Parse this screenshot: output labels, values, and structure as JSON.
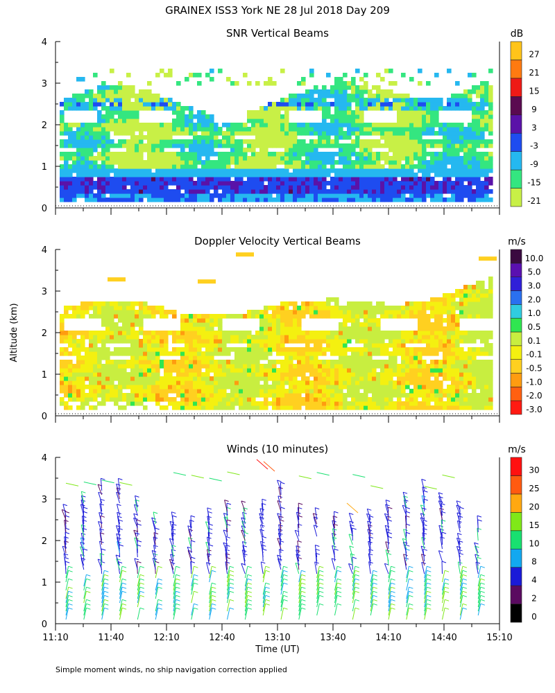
{
  "figure": {
    "title": "GRAINEX ISS3 York NE  28 Jul 2018 Day 209",
    "y_axis_label": "Altitude (km)",
    "x_axis_label": "Time (UT)",
    "footnote": "Simple moment winds, no ship navigation correction applied"
  },
  "chart_data": [
    {
      "type": "heatmap",
      "title": "SNR Vertical Beams",
      "colorbar": {
        "unit": "dB",
        "labels": [
          "-21",
          "-15",
          "-9",
          "-3",
          "3",
          "9",
          "15",
          "21",
          "27"
        ],
        "colors": [
          "#c8f046",
          "#34e680",
          "#25b8f0",
          "#1e4cf0",
          "#5a12a8",
          "#5a0a50",
          "#ee1a16",
          "#ff7a10",
          "#ffc41a"
        ]
      },
      "y_ticks": [
        "0",
        "1",
        "2",
        "3",
        "4"
      ],
      "ylim": [
        0,
        4
      ],
      "xlim": [
        "11:10",
        "15:10"
      ]
    },
    {
      "type": "heatmap",
      "title": "Doppler Velocity Vertical Beams",
      "colorbar": {
        "unit": "m/s",
        "labels": [
          "-3.0",
          "-2.0",
          "-1.0",
          "-0.5",
          "-0.1",
          "0.1",
          "0.5",
          "1.0",
          "2.0",
          "3.0",
          "5.0",
          "10.0"
        ],
        "colors": [
          "#ff1a12",
          "#ff6010",
          "#ff9c10",
          "#ffd020",
          "#f4f010",
          "#c8ee40",
          "#30e650",
          "#30cce0",
          "#2a70f0",
          "#3020d8",
          "#5a10b0",
          "#3a0a40"
        ]
      },
      "y_ticks": [
        "0",
        "1",
        "2",
        "3",
        "4"
      ],
      "ylim": [
        0,
        4
      ],
      "xlim": [
        "11:10",
        "15:10"
      ]
    },
    {
      "type": "scatter",
      "title": "Winds (10 minutes)",
      "colorbar": {
        "unit": "m/s",
        "labels": [
          "0",
          "2",
          "4",
          "8",
          "10",
          "15",
          "20",
          "25",
          "30"
        ],
        "colors": [
          "#000000",
          "#5a0a60",
          "#1a1ad8",
          "#12a8f0",
          "#18e070",
          "#80e818",
          "#ffa810",
          "#ff5a10",
          "#ff1010"
        ]
      },
      "y_ticks": [
        "0",
        "1",
        "2",
        "3",
        "4"
      ],
      "x_ticks": [
        "11:10",
        "11:40",
        "12:10",
        "12:40",
        "13:10",
        "13:40",
        "14:10",
        "14:40",
        "15:10"
      ],
      "ylim": [
        0,
        4
      ],
      "xlim": [
        "11:10",
        "15:10"
      ]
    }
  ]
}
